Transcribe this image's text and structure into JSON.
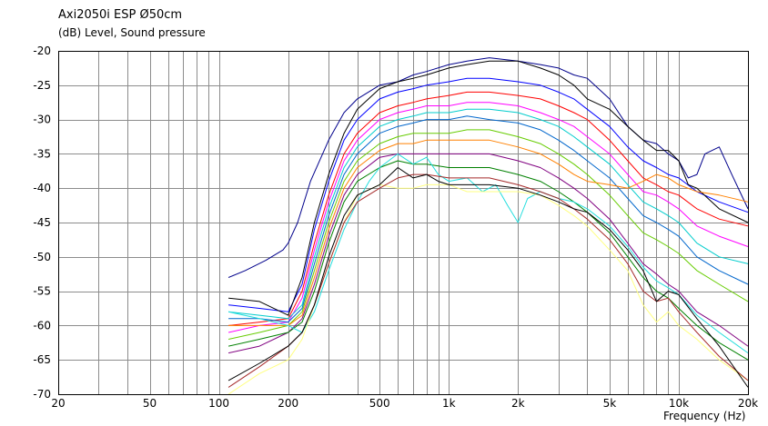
{
  "chart_data": {
    "type": "line",
    "title": "Axi2050i ESP Ø50cm",
    "ylabel": "(dB)  Level, Sound pressure",
    "xlabel": "Frequency  (Hz)",
    "xscale": "log",
    "xlim": [
      20,
      20000
    ],
    "ylim": [
      -70,
      -20
    ],
    "x_ticks": [
      20,
      50,
      100,
      200,
      500,
      1000,
      2000,
      5000,
      10000,
      20000
    ],
    "x_tick_labels": [
      "20",
      "50",
      "100",
      "200",
      "500",
      "1k",
      "2k",
      "5k",
      "10k",
      "20k"
    ],
    "y_ticks": [
      -20,
      -25,
      -30,
      -35,
      -40,
      -45,
      -50,
      -55,
      -60,
      -65,
      -70
    ],
    "y_tick_labels": [
      "-20",
      "-25",
      "-30",
      "-35",
      "-40",
      "-45",
      "-50",
      "-55",
      "-60",
      "-65",
      "-70"
    ],
    "grid": true,
    "series": [
      {
        "color": "#00008b",
        "x": [
          110,
          130,
          160,
          190,
          200,
          220,
          250,
          300,
          350,
          400,
          500,
          600,
          700,
          800,
          1000,
          1200,
          1500,
          2000,
          2500,
          3000,
          3500,
          4000,
          5000,
          6000,
          7000,
          8000,
          9000,
          10000,
          11000,
          12000,
          13000,
          15000,
          17000,
          20000
        ],
        "y": [
          -53,
          -52,
          -50.5,
          -49,
          -48,
          -45,
          -39,
          -33,
          -29,
          -27,
          -25,
          -24.5,
          -23.5,
          -23,
          -22,
          -21.5,
          -21,
          -21.5,
          -22,
          -22.5,
          -23.5,
          -24,
          -27,
          -31,
          -33,
          -33.5,
          -35,
          -36,
          -38.5,
          -38,
          -35,
          -34,
          -38,
          -43
        ]
      },
      {
        "color": "#0000ff",
        "x": [
          110,
          150,
          200,
          230,
          260,
          300,
          350,
          400,
          500,
          600,
          700,
          800,
          1000,
          1200,
          1500,
          2000,
          2500,
          3000,
          3500,
          4000,
          5000,
          6000,
          7000,
          8000,
          9000,
          10000,
          12000,
          15000,
          20000
        ],
        "y": [
          -57,
          -57.5,
          -58,
          -54,
          -46,
          -39,
          -33,
          -30,
          -27,
          -26,
          -25.5,
          -25,
          -24.5,
          -24,
          -24,
          -24.5,
          -25,
          -26,
          -27,
          -28.5,
          -31,
          -34,
          -36,
          -37,
          -38,
          -38.5,
          -40.5,
          -42,
          -43.5
        ]
      },
      {
        "color": "#000000",
        "x": [
          110,
          150,
          200,
          230,
          260,
          300,
          350,
          400,
          500,
          600,
          700,
          800,
          1000,
          1200,
          1500,
          2000,
          2500,
          3000,
          3500,
          4000,
          5000,
          6000,
          7000,
          8000,
          9000,
          10000,
          11000,
          12000,
          15000,
          20000
        ],
        "y": [
          -56,
          -56.5,
          -58.5,
          -53,
          -45,
          -38,
          -32,
          -28.5,
          -25.5,
          -24.5,
          -24,
          -23.5,
          -22.5,
          -22,
          -21.5,
          -21.5,
          -22.5,
          -23.5,
          -25,
          -27,
          -28.5,
          -31,
          -33,
          -34.5,
          -34.5,
          -36,
          -39.5,
          -40,
          -43,
          -45
        ]
      },
      {
        "color": "#ff0000",
        "x": [
          110,
          150,
          200,
          230,
          260,
          300,
          350,
          400,
          500,
          600,
          700,
          800,
          1000,
          1200,
          1500,
          2000,
          2500,
          3000,
          3500,
          4000,
          5000,
          6000,
          7000,
          8000,
          9000,
          10000,
          12000,
          15000,
          20000
        ],
        "y": [
          -60,
          -59.5,
          -59,
          -55,
          -48,
          -41,
          -35,
          -32,
          -29,
          -28,
          -27.5,
          -27,
          -26.5,
          -26,
          -26,
          -26.5,
          -27,
          -28,
          -29,
          -30,
          -33,
          -36,
          -38.5,
          -39.5,
          -40.5,
          -41,
          -43,
          -44.5,
          -45.5
        ]
      },
      {
        "color": "#ff00ff",
        "x": [
          110,
          150,
          200,
          230,
          260,
          300,
          350,
          400,
          500,
          600,
          700,
          800,
          1000,
          1200,
          1500,
          2000,
          2500,
          3000,
          3500,
          4000,
          5000,
          6000,
          7000,
          8000,
          9000,
          10000,
          12000,
          15000,
          20000
        ],
        "y": [
          -61,
          -60,
          -59.5,
          -56,
          -49,
          -42,
          -36,
          -33,
          -30,
          -29,
          -28.5,
          -28,
          -28,
          -27.5,
          -27.5,
          -28,
          -29,
          -30,
          -31,
          -32.5,
          -35,
          -38,
          -40.5,
          -41,
          -42,
          -43,
          -45.5,
          -47,
          -48.5
        ]
      },
      {
        "color": "#00cccc",
        "x": [
          110,
          150,
          200,
          230,
          260,
          300,
          350,
          400,
          500,
          600,
          700,
          800,
          1000,
          1200,
          1500,
          2000,
          2500,
          3000,
          3500,
          4000,
          5000,
          6000,
          7000,
          8000,
          9000,
          10000,
          12000,
          15000,
          20000
        ],
        "y": [
          -58,
          -58.5,
          -59,
          -57,
          -50,
          -43,
          -37,
          -34,
          -31,
          -30,
          -29.5,
          -29,
          -29,
          -28.5,
          -28.5,
          -29,
          -30,
          -31,
          -32.5,
          -34,
          -36.5,
          -39.5,
          -42,
          -43,
          -44,
          -45,
          -48,
          -50,
          -51
        ]
      },
      {
        "color": "#0066cc",
        "x": [
          110,
          150,
          200,
          230,
          260,
          300,
          350,
          400,
          500,
          600,
          700,
          800,
          1000,
          1200,
          1500,
          2000,
          2500,
          3000,
          3500,
          4000,
          5000,
          6000,
          7000,
          8000,
          9000,
          10000,
          12000,
          15000,
          20000
        ],
        "y": [
          -59,
          -59,
          -59.5,
          -57.5,
          -51,
          -44,
          -38,
          -35,
          -32,
          -31,
          -30.5,
          -30,
          -30,
          -29.5,
          -30,
          -30.5,
          -31.5,
          -33,
          -34.5,
          -36,
          -38.5,
          -41.5,
          -44,
          -45,
          -46,
          -47,
          -50,
          -52,
          -54
        ]
      },
      {
        "color": "#66cc00",
        "x": [
          110,
          150,
          200,
          230,
          260,
          300,
          350,
          400,
          500,
          600,
          700,
          800,
          1000,
          1200,
          1500,
          2000,
          2500,
          3000,
          3500,
          4000,
          5000,
          6000,
          7000,
          8000,
          9000,
          10000,
          12000,
          15000,
          20000
        ],
        "y": [
          -62,
          -61,
          -60,
          -58,
          -52,
          -45,
          -39,
          -36,
          -33.5,
          -32.5,
          -32,
          -32,
          -32,
          -31.5,
          -31.5,
          -32.5,
          -33.5,
          -35,
          -36.5,
          -38,
          -41,
          -44,
          -46.5,
          -47.5,
          -48.5,
          -49.5,
          -52,
          -54,
          -56.5
        ]
      },
      {
        "color": "#ff8000",
        "x": [
          110,
          150,
          200,
          230,
          260,
          300,
          350,
          400,
          500,
          600,
          700,
          800,
          1000,
          1200,
          1500,
          2000,
          2500,
          3000,
          3500,
          4000,
          5000,
          6000,
          7000,
          8000,
          9000,
          10000,
          12000,
          15000,
          20000
        ],
        "y": [
          -60,
          -60,
          -60,
          -58.5,
          -53,
          -46,
          -40,
          -37,
          -34.5,
          -33.5,
          -33.5,
          -33,
          -33,
          -33,
          -33,
          -34,
          -35,
          -36.5,
          -38,
          -39,
          -39.5,
          -40,
          -39,
          -38,
          -38.5,
          -39.5,
          -40.5,
          -41,
          -42
        ]
      },
      {
        "color": "#800080",
        "x": [
          110,
          150,
          200,
          230,
          260,
          300,
          350,
          400,
          500,
          600,
          700,
          800,
          1000,
          1200,
          1500,
          2000,
          2500,
          3000,
          3500,
          4000,
          5000,
          6000,
          7000,
          8000,
          9000,
          10000,
          12000,
          15000,
          20000
        ],
        "y": [
          -64,
          -63,
          -61,
          -59,
          -54,
          -47,
          -41,
          -38,
          -35.5,
          -35,
          -35,
          -35,
          -35,
          -35,
          -35,
          -36,
          -37,
          -38.5,
          -40,
          -41.5,
          -44.5,
          -48,
          -51,
          -52.5,
          -54,
          -55,
          -58,
          -60,
          -63
        ]
      },
      {
        "color": "#008000",
        "x": [
          110,
          150,
          200,
          230,
          260,
          300,
          350,
          400,
          500,
          600,
          700,
          800,
          1000,
          1200,
          1500,
          2000,
          2500,
          3000,
          3500,
          4000,
          5000,
          6000,
          7000,
          8000,
          9000,
          10000,
          12000,
          15000,
          20000
        ],
        "y": [
          -63,
          -62,
          -61,
          -59.5,
          -55,
          -48,
          -42,
          -39,
          -37,
          -36,
          -36.5,
          -36.5,
          -37,
          -37,
          -37,
          -38,
          -39,
          -40.5,
          -42,
          -43.5,
          -46.5,
          -50,
          -53,
          -55,
          -56,
          -57.5,
          -60,
          -62.5,
          -65
        ]
      },
      {
        "color": "#22dddd",
        "x": [
          110,
          150,
          200,
          230,
          260,
          300,
          350,
          400,
          450,
          500,
          600,
          700,
          800,
          900,
          1000,
          1200,
          1400,
          1600,
          1800,
          2000,
          2200,
          2500,
          3000,
          3500,
          4000,
          5000,
          6000,
          7000,
          8000,
          9000,
          10000,
          12000,
          15000,
          20000
        ],
        "y": [
          -58,
          -59,
          -60,
          -61,
          -58,
          -52,
          -46,
          -42,
          -39,
          -37,
          -35,
          -36.5,
          -35.5,
          -38,
          -39,
          -38.5,
          -40.5,
          -39.5,
          -42.5,
          -45,
          -41.5,
          -40.5,
          -41.5,
          -42,
          -43,
          -45.5,
          -48.5,
          -51.5,
          -53.5,
          -54.5,
          -55.5,
          -58.5,
          -61,
          -64
        ]
      },
      {
        "color": "#ffff80",
        "x": [
          110,
          150,
          200,
          230,
          260,
          300,
          350,
          400,
          500,
          600,
          700,
          800,
          1000,
          1200,
          1500,
          2000,
          2500,
          3000,
          3500,
          4000,
          5000,
          6000,
          7000,
          8000,
          9000,
          10000,
          12000,
          15000,
          20000
        ],
        "y": [
          -70,
          -67,
          -65,
          -62,
          -57,
          -51,
          -45,
          -41,
          -39.5,
          -40,
          -40,
          -39.5,
          -39.5,
          -40.5,
          -40.5,
          -40.5,
          -41,
          -42.5,
          -44,
          -45.5,
          -49,
          -52,
          -57,
          -59.5,
          -58,
          -60,
          -62,
          -65,
          -68
        ]
      },
      {
        "color": "#a52a2a",
        "x": [
          110,
          150,
          200,
          230,
          260,
          300,
          350,
          400,
          500,
          600,
          700,
          800,
          1000,
          1200,
          1500,
          2000,
          2500,
          3000,
          3500,
          4000,
          5000,
          6000,
          7000,
          8000,
          9000,
          10000,
          12000,
          15000,
          20000
        ],
        "y": [
          -69,
          -66,
          -63,
          -61,
          -57,
          -51,
          -45,
          -42,
          -40,
          -38.5,
          -38,
          -38,
          -38.5,
          -38.5,
          -38.5,
          -39.5,
          -40.5,
          -41.5,
          -43,
          -44.5,
          -47.5,
          -51,
          -55,
          -56.5,
          -56,
          -58,
          -61,
          -64.5,
          -68
        ]
      },
      {
        "color": "#000000",
        "x": [
          110,
          150,
          200,
          230,
          260,
          300,
          350,
          400,
          500,
          600,
          700,
          800,
          900,
          1000,
          1200,
          1500,
          2000,
          2500,
          3000,
          3500,
          4000,
          5000,
          6000,
          7000,
          8000,
          9000,
          10000,
          12000,
          15000,
          20000
        ],
        "y": [
          -68,
          -65.5,
          -63,
          -61,
          -57,
          -50,
          -44,
          -41,
          -39.5,
          -37,
          -38.5,
          -38,
          -39,
          -39.5,
          -39.5,
          -39.5,
          -40,
          -41,
          -42,
          -43,
          -43.5,
          -46,
          -49,
          -52,
          -56.5,
          -55,
          -55.5,
          -59,
          -63,
          -69
        ]
      }
    ]
  }
}
